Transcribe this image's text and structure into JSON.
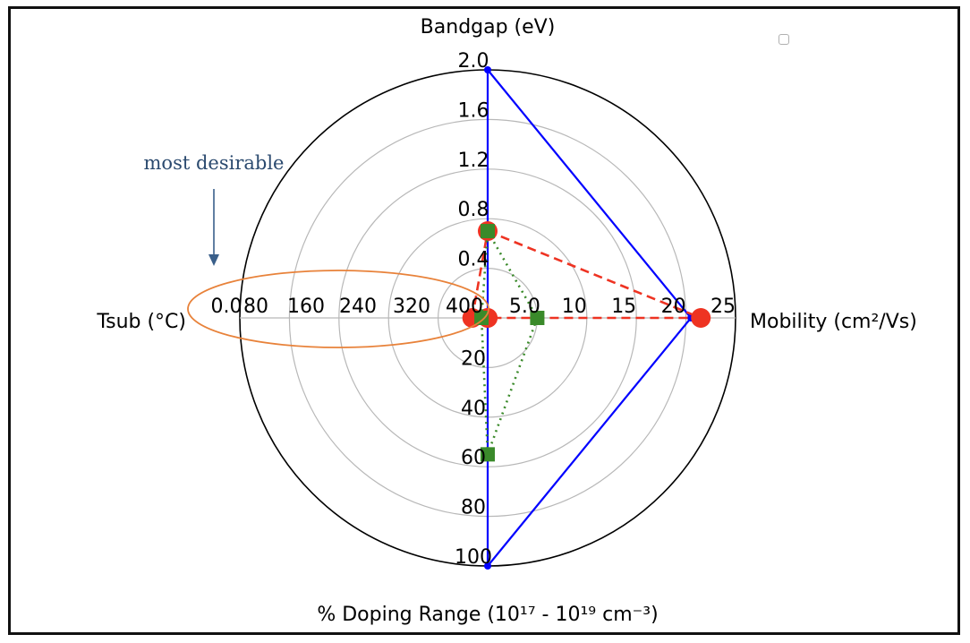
{
  "chart_data": {
    "type": "radar",
    "axes": [
      {
        "key": "bandgap",
        "title": "Bandgap (eV)",
        "range": [
          0,
          2.0
        ],
        "ticks": [
          "0.4",
          "0.8",
          "1.2",
          "1.6",
          "2.0"
        ]
      },
      {
        "key": "mobility",
        "title": "Mobility (cm²/Vs)",
        "range": [
          0,
          25
        ],
        "ticks": [
          "5.0",
          "10",
          "15",
          "20",
          "25"
        ]
      },
      {
        "key": "doping",
        "title": "% Doping Range (10¹⁷ - 10¹⁹ cm⁻³)",
        "range": [
          0,
          100
        ],
        "ticks": [
          "20",
          "40",
          "60",
          "80",
          "100"
        ]
      },
      {
        "key": "tsub",
        "title": "Tsub (°C)",
        "range": [
          400,
          0
        ],
        "ticks": [
          "400",
          "320",
          "240",
          "160",
          "80",
          "0.0"
        ]
      }
    ],
    "series": [
      {
        "color": "#0000ff",
        "style": "solid",
        "marker": "circle-small",
        "values": {
          "bandgap": 2.0,
          "mobility": 20.5,
          "doping": 100,
          "tsub": 400
        }
      },
      {
        "color": "#ee3322",
        "style": "dashed",
        "marker": "circle",
        "values": {
          "bandgap": 0.7,
          "mobility": 21.5,
          "doping": 0,
          "tsub": 375
        },
        "extra_points": [
          {
            "axis": "mobility",
            "value": 0
          }
        ]
      },
      {
        "color": "#3a8a2a",
        "style": "dotted",
        "marker": "square",
        "values": {
          "bandgap": 0.7,
          "mobility": 5.0,
          "doping": 55,
          "tsub": 390
        }
      }
    ],
    "grid": true,
    "legend": "top-right"
  },
  "annotation": {
    "text": "most desirable",
    "arrow_color": "#3a5f8a",
    "ellipse_color": "#e8823a"
  }
}
